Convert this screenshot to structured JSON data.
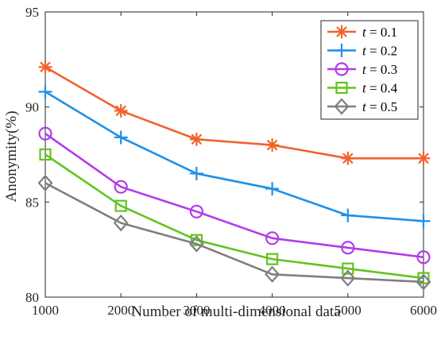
{
  "chart_data": {
    "type": "line",
    "title": "",
    "xlabel": "Number of multi-dimensional data",
    "ylabel": "Anonymity(%)",
    "x": [
      1000,
      2000,
      3000,
      4000,
      5000,
      6000
    ],
    "xlim": [
      1000,
      6000
    ],
    "ylim": [
      80,
      95
    ],
    "xticks": [
      "1000",
      "2000",
      "3000",
      "4000",
      "5000",
      "6000"
    ],
    "yticks": [
      "80",
      "85",
      "90",
      "95"
    ],
    "grid": false,
    "legend_position": "top-right",
    "series": [
      {
        "label_var": "t",
        "label_value": "0.1",
        "color": "#F0632C",
        "marker": "asterisk",
        "values": [
          92.1,
          89.8,
          88.3,
          88.0,
          87.3,
          87.3
        ]
      },
      {
        "label_var": "t",
        "label_value": "0.2",
        "color": "#1E90E8",
        "marker": "plus",
        "values": [
          90.8,
          88.4,
          86.5,
          85.7,
          84.3,
          84.0
        ]
      },
      {
        "label_var": "t",
        "label_value": "0.3",
        "color": "#B23CE8",
        "marker": "circle",
        "values": [
          88.6,
          85.8,
          84.5,
          83.1,
          82.6,
          82.1
        ]
      },
      {
        "label_var": "t",
        "label_value": "0.4",
        "color": "#62C41E",
        "marker": "square",
        "values": [
          87.5,
          84.8,
          83.0,
          82.0,
          81.5,
          81.0
        ]
      },
      {
        "label_var": "t",
        "label_value": "0.5",
        "color": "#7F7F7F",
        "marker": "diamond",
        "values": [
          86.0,
          83.9,
          82.8,
          81.2,
          81.0,
          80.8
        ]
      }
    ]
  }
}
